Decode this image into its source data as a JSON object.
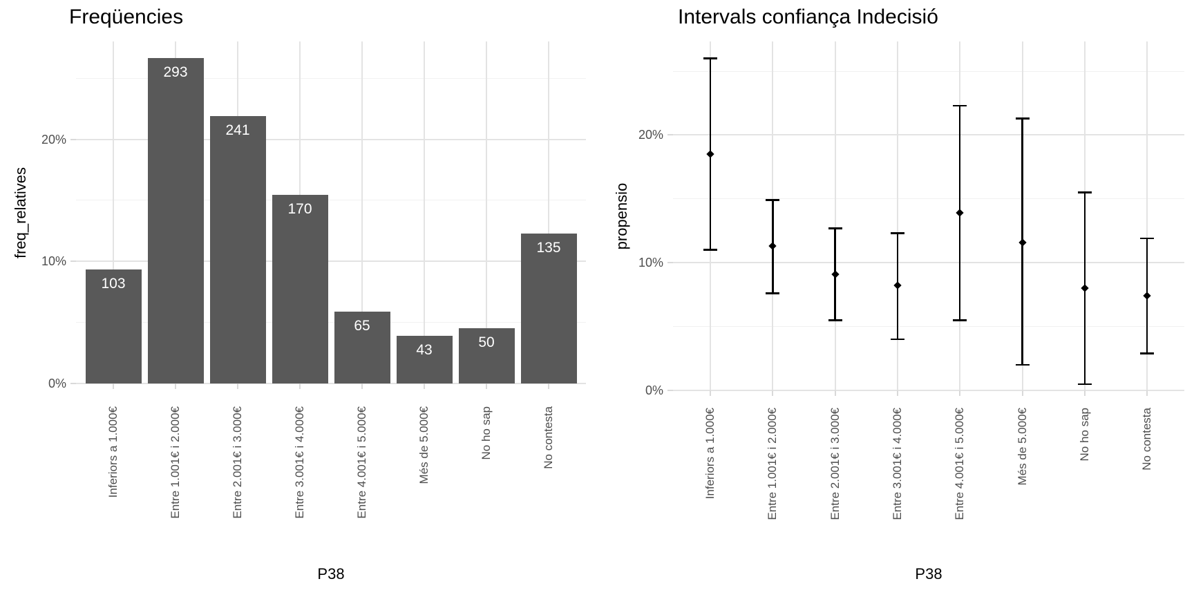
{
  "figure_background": "#FFFFFF",
  "theme": {
    "grid_major_color": "#E3E3E3",
    "grid_minor_color": "#F1F1F1",
    "axis_tick_color": "#D9D9D9",
    "tick_label_color": "#4D4D4D",
    "title_color": "#000000",
    "axis_title_color": "#000000",
    "bar_fill": "#595959",
    "bar_label_color": "#FFFFFF",
    "errorbar_color": "#000000"
  },
  "chart_data": [
    {
      "type": "bar",
      "title": "Freqüencies",
      "xlabel": "P38",
      "ylabel": "freq_relatives",
      "categories": [
        "Inferiors a 1.000€",
        "Entre 1.001€ i 2.000€",
        "Entre 2.001€ i 3.000€",
        "Entre 3.001€ i 4.000€",
        "Entre 4.001€ i 5.000€",
        "Més de 5.000€",
        "No ho sap",
        "No contesta"
      ],
      "bar_count_labels": [
        103,
        293,
        241,
        170,
        65,
        43,
        50,
        135
      ],
      "values_pct": [
        9.36,
        26.64,
        21.91,
        15.45,
        5.91,
        3.91,
        4.55,
        12.27
      ],
      "y_tick_labels": [
        "0%",
        "10%",
        "20%"
      ],
      "y_tick_values": [
        0,
        10,
        20
      ],
      "y_minor_values": [
        5,
        15,
        25
      ],
      "ylim": [
        0,
        28
      ],
      "grid": true,
      "legend": "none"
    },
    {
      "type": "errorbar",
      "title": "Intervals confiança Indecisió",
      "xlabel": "P38",
      "ylabel": "propensio",
      "categories": [
        "Inferiors a 1.000€",
        "Entre 1.001€ i 2.000€",
        "Entre 2.001€ i 3.000€",
        "Entre 3.001€ i 4.000€",
        "Entre 4.001€ i 5.000€",
        "Més de 5.000€",
        "No ho sap",
        "No contesta"
      ],
      "points_pct": [
        18.5,
        11.3,
        9.1,
        8.2,
        13.9,
        11.6,
        8.0,
        7.4
      ],
      "ci_low_pct": [
        11.0,
        7.6,
        5.5,
        4.0,
        5.5,
        2.0,
        0.5,
        2.9
      ],
      "ci_high_pct": [
        26.0,
        14.9,
        12.7,
        12.3,
        22.3,
        21.3,
        15.5,
        11.9
      ],
      "marker": "diamond",
      "y_tick_labels": [
        "0%",
        "10%",
        "20%"
      ],
      "y_tick_values": [
        0,
        10,
        20
      ],
      "y_minor_values": [
        5,
        15,
        25
      ],
      "ylim": [
        0,
        27.5
      ],
      "grid": true,
      "legend": "none"
    }
  ]
}
